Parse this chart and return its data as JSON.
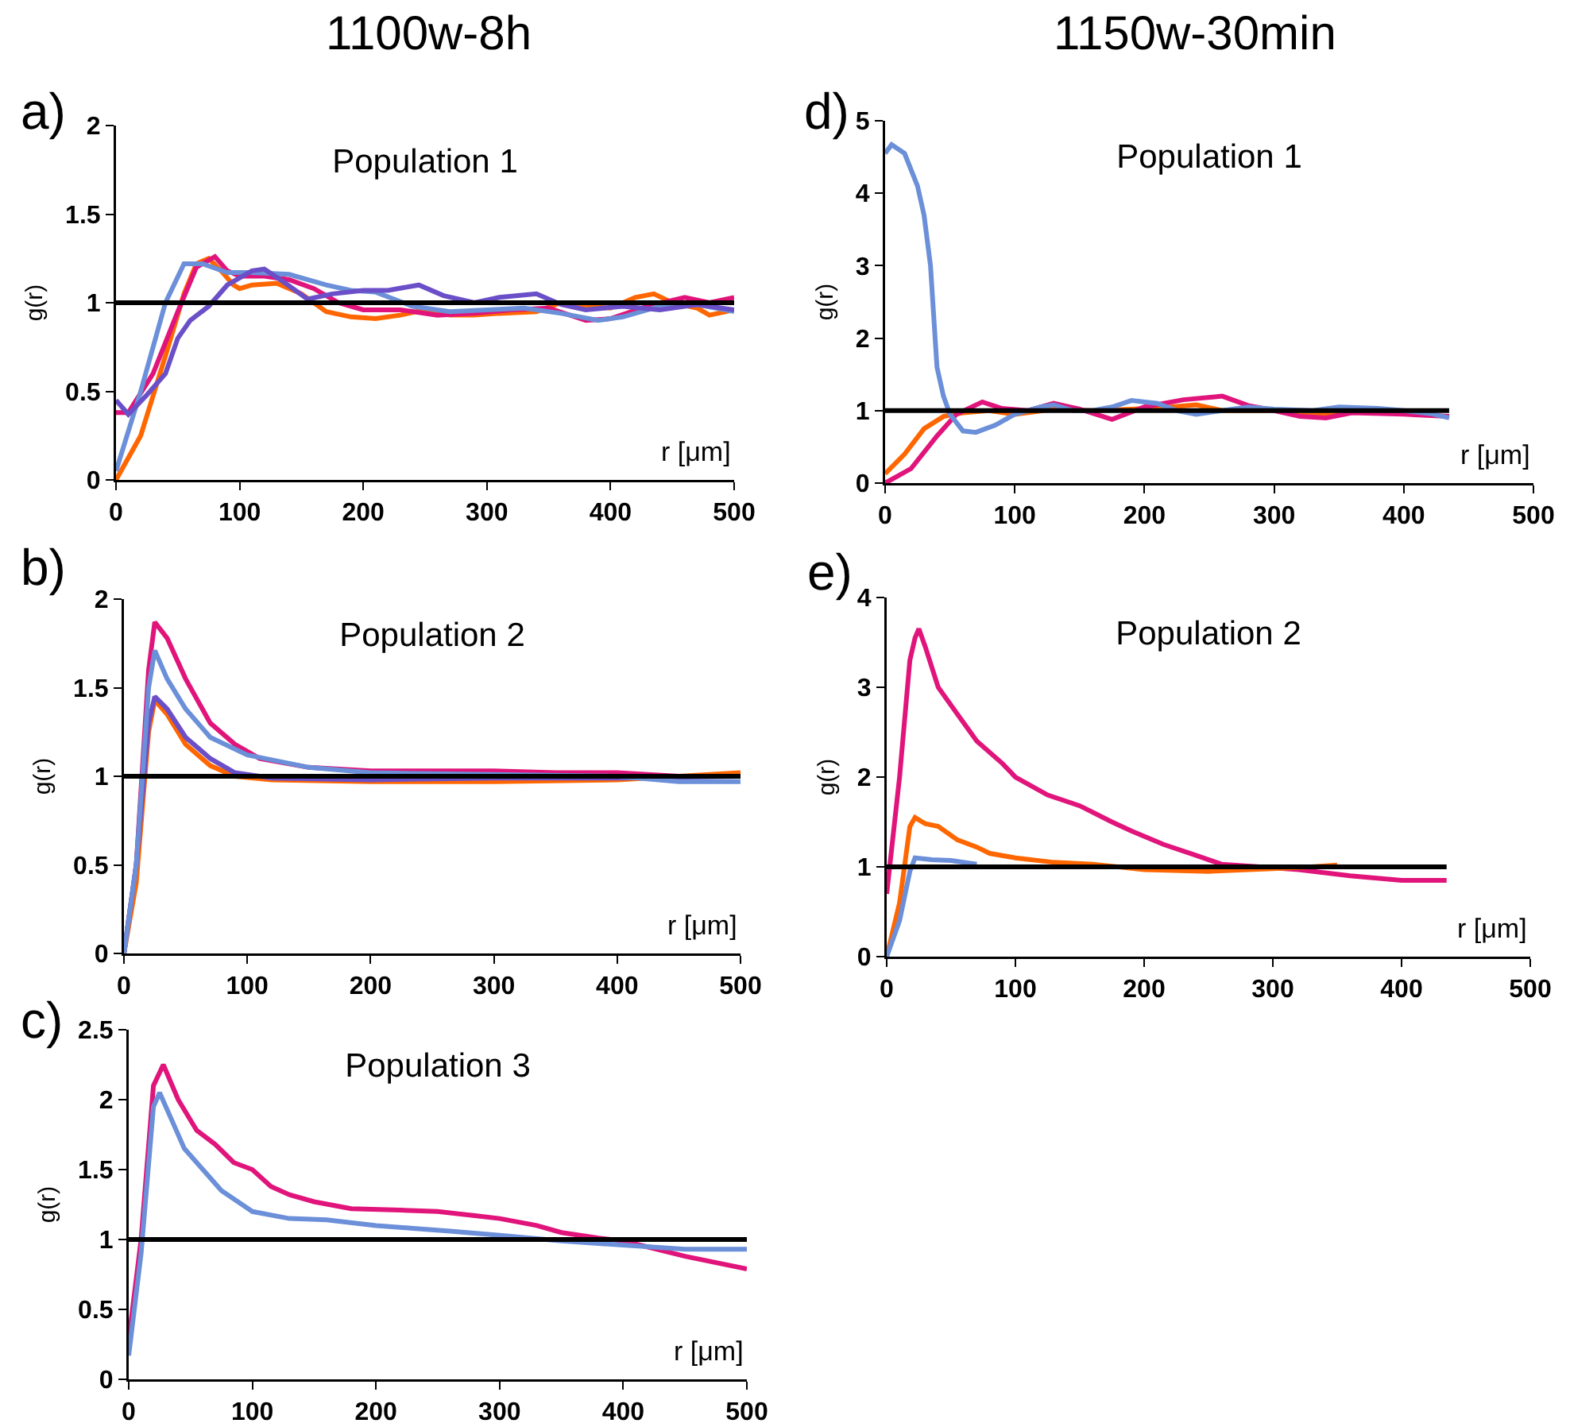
{
  "chart_data": [
    {
      "type": "line",
      "title": "Population 1",
      "xlabel": "r [μm]",
      "ylabel": "g(r)",
      "annotations": [
        "1100w-8h",
        "a)"
      ],
      "xlim": [
        0,
        500
      ],
      "xticks": [
        0,
        100,
        200,
        300,
        400,
        500
      ],
      "ylim": [
        0,
        2
      ],
      "yticks": [
        0,
        0.5,
        1,
        1.5,
        2
      ],
      "series": [
        {
          "color": "#ff6600",
          "x": [
            0,
            20,
            40,
            55,
            65,
            75,
            85,
            95,
            100,
            110,
            130,
            150,
            170,
            190,
            210,
            230,
            250,
            270,
            290,
            310,
            340,
            360,
            380,
            400,
            420,
            435,
            450,
            470,
            480,
            500
          ],
          "values": [
            0,
            0.25,
            0.7,
            1.05,
            1.22,
            1.25,
            1.18,
            1.1,
            1.08,
            1.1,
            1.11,
            1.05,
            0.95,
            0.92,
            0.91,
            0.93,
            0.96,
            0.93,
            0.93,
            0.94,
            0.95,
            1.0,
            0.98,
            0.97,
            1.03,
            1.05,
            1.0,
            0.97,
            0.93,
            0.96
          ]
        },
        {
          "color": "#e0147a",
          "x": [
            0,
            10,
            30,
            50,
            65,
            80,
            90,
            100,
            120,
            140,
            160,
            180,
            200,
            230,
            260,
            290,
            320,
            350,
            380,
            400,
            430,
            460,
            480,
            500
          ],
          "values": [
            0.38,
            0.38,
            0.6,
            0.95,
            1.2,
            1.26,
            1.18,
            1.15,
            1.15,
            1.13,
            1.08,
            1.0,
            0.96,
            0.96,
            0.93,
            0.94,
            0.96,
            0.97,
            0.9,
            0.91,
            0.98,
            1.03,
            1.0,
            1.03
          ]
        },
        {
          "color": "#6b8fd8",
          "x": [
            0,
            20,
            40,
            55,
            70,
            90,
            110,
            140,
            170,
            190,
            210,
            240,
            270,
            300,
            330,
            360,
            390,
            410,
            440,
            470,
            500
          ],
          "values": [
            0.05,
            0.5,
            1.0,
            1.22,
            1.22,
            1.17,
            1.17,
            1.16,
            1.1,
            1.07,
            1.06,
            0.98,
            0.95,
            0.96,
            0.97,
            0.94,
            0.9,
            0.92,
            0.98,
            0.99,
            0.95
          ]
        },
        {
          "color": "#6a4fc8",
          "x": [
            0,
            10,
            25,
            40,
            50,
            60,
            75,
            90,
            110,
            120,
            135,
            155,
            175,
            200,
            220,
            245,
            265,
            290,
            310,
            340,
            360,
            380,
            410,
            440,
            470,
            500
          ],
          "values": [
            0.45,
            0.37,
            0.48,
            0.6,
            0.8,
            0.9,
            0.98,
            1.1,
            1.18,
            1.19,
            1.12,
            1.02,
            1.05,
            1.07,
            1.07,
            1.1,
            1.04,
            1.0,
            1.03,
            1.05,
            0.99,
            0.96,
            0.98,
            0.96,
            0.99,
            0.96
          ]
        },
        {
          "color": "#000000",
          "x": [
            0,
            500
          ],
          "values": [
            1,
            1
          ]
        }
      ]
    },
    {
      "type": "line",
      "title": "Population 2",
      "xlabel": "r [μm]",
      "ylabel": "g(r)",
      "annotations": [
        "b)"
      ],
      "xlim": [
        0,
        500
      ],
      "xticks": [
        0,
        100,
        200,
        300,
        400,
        500
      ],
      "ylim": [
        0,
        2
      ],
      "yticks": [
        0,
        0.5,
        1,
        1.5,
        2
      ],
      "series": [
        {
          "color": "#e0147a",
          "x": [
            0,
            10,
            20,
            25,
            35,
            50,
            70,
            90,
            110,
            150,
            200,
            250,
            300,
            350,
            400,
            450,
            500
          ],
          "values": [
            0,
            0.5,
            1.6,
            1.87,
            1.78,
            1.55,
            1.3,
            1.18,
            1.1,
            1.05,
            1.03,
            1.03,
            1.03,
            1.02,
            1.02,
            1.0,
            1.0
          ]
        },
        {
          "color": "#ff6600",
          "x": [
            0,
            10,
            20,
            25,
            35,
            50,
            70,
            90,
            120,
            200,
            300,
            400,
            500
          ],
          "values": [
            0,
            0.4,
            1.25,
            1.43,
            1.35,
            1.18,
            1.06,
            1.0,
            0.98,
            0.97,
            0.97,
            0.98,
            1.02
          ]
        },
        {
          "color": "#6a4fc8",
          "x": [
            0,
            10,
            20,
            25,
            35,
            50,
            70,
            90,
            120,
            200,
            300,
            400,
            500
          ],
          "values": [
            0,
            0.5,
            1.3,
            1.45,
            1.38,
            1.22,
            1.1,
            1.02,
            0.99,
            0.98,
            0.99,
            0.99,
            1.0
          ]
        },
        {
          "color": "#6b8fd8",
          "x": [
            0,
            10,
            20,
            25,
            35,
            50,
            70,
            100,
            150,
            200,
            300,
            400,
            450,
            500
          ],
          "values": [
            0,
            0.5,
            1.5,
            1.71,
            1.55,
            1.38,
            1.22,
            1.12,
            1.05,
            1.02,
            1.01,
            1.0,
            0.97,
            0.97
          ]
        },
        {
          "color": "#000000",
          "x": [
            0,
            500
          ],
          "values": [
            1,
            1
          ]
        }
      ]
    },
    {
      "type": "line",
      "title": "Population 3",
      "xlabel": "r [μm]",
      "ylabel": "g(r)",
      "annotations": [
        "c)"
      ],
      "xlim": [
        0,
        500
      ],
      "xticks": [
        0,
        100,
        200,
        300,
        400,
        500
      ],
      "ylim": [
        0,
        2.5
      ],
      "yticks": [
        0,
        0.5,
        1,
        1.5,
        2,
        2.5
      ],
      "series": [
        {
          "color": "#e0147a",
          "x": [
            0,
            10,
            20,
            28,
            40,
            55,
            70,
            85,
            100,
            115,
            130,
            150,
            180,
            220,
            250,
            280,
            300,
            330,
            350,
            380,
            400,
            450,
            500
          ],
          "values": [
            0.28,
            1.0,
            2.1,
            2.25,
            2.0,
            1.78,
            1.68,
            1.55,
            1.5,
            1.38,
            1.32,
            1.27,
            1.22,
            1.21,
            1.2,
            1.17,
            1.15,
            1.1,
            1.05,
            1.01,
            0.99,
            0.88,
            0.79
          ]
        },
        {
          "color": "#6b8fd8",
          "x": [
            0,
            10,
            20,
            25,
            35,
            45,
            60,
            75,
            100,
            130,
            160,
            200,
            230,
            260,
            300,
            350,
            400,
            450,
            500
          ],
          "values": [
            0.17,
            0.9,
            1.95,
            2.05,
            1.85,
            1.65,
            1.5,
            1.35,
            1.2,
            1.15,
            1.14,
            1.1,
            1.08,
            1.06,
            1.03,
            0.99,
            0.96,
            0.93,
            0.93
          ]
        },
        {
          "color": "#000000",
          "x": [
            0,
            500
          ],
          "values": [
            1,
            1
          ]
        }
      ]
    },
    {
      "type": "line",
      "title": "Population 1",
      "xlabel": "r [μm]",
      "ylabel": "g(r)",
      "annotations": [
        "1150w-30min",
        "d)"
      ],
      "xlim": [
        0,
        500
      ],
      "xticks": [
        0,
        100,
        200,
        300,
        400,
        500
      ],
      "ylim": [
        0,
        5
      ],
      "yticks": [
        0,
        1,
        2,
        3,
        4,
        5
      ],
      "series": [
        {
          "color": "#ff6600",
          "x": [
            0,
            15,
            30,
            45,
            60,
            80,
            100,
            130,
            160,
            190,
            220,
            240,
            260,
            300,
            330,
            350
          ],
          "values": [
            0.13,
            0.4,
            0.75,
            0.92,
            0.97,
            1.0,
            0.95,
            1.02,
            1.0,
            1.02,
            1.05,
            1.08,
            1.0,
            1.0,
            0.95,
            0.96
          ]
        },
        {
          "color": "#e0147a",
          "x": [
            0,
            20,
            40,
            55,
            75,
            90,
            110,
            130,
            150,
            175,
            200,
            230,
            260,
            280,
            300,
            320,
            340,
            360,
            400,
            435
          ],
          "values": [
            0,
            0.2,
            0.65,
            0.95,
            1.12,
            1.03,
            1.0,
            1.1,
            1.02,
            0.88,
            1.05,
            1.15,
            1.2,
            1.07,
            1.0,
            0.92,
            0.9,
            0.97,
            0.95,
            0.92
          ]
        },
        {
          "color": "#6b8fd8",
          "x": [
            0,
            5,
            15,
            25,
            30,
            35,
            40,
            45,
            50,
            60,
            70,
            85,
            100,
            120,
            130,
            145,
            160,
            175,
            190,
            210,
            225,
            240,
            260,
            280,
            300,
            330,
            350,
            380,
            400,
            420,
            435
          ],
          "values": [
            4.55,
            4.67,
            4.55,
            4.1,
            3.7,
            3.0,
            1.6,
            1.2,
            0.95,
            0.72,
            0.7,
            0.8,
            0.95,
            1.05,
            1.08,
            1.0,
            1.0,
            1.05,
            1.14,
            1.1,
            1.0,
            0.95,
            1.0,
            1.05,
            1.02,
            1.0,
            1.05,
            1.03,
            1.0,
            0.96,
            0.9
          ]
        },
        {
          "color": "#000000",
          "x": [
            0,
            435
          ],
          "values": [
            1,
            1
          ]
        }
      ]
    },
    {
      "type": "line",
      "title": "Population 2",
      "xlabel": "r [μm]",
      "ylabel": "g(r)",
      "annotations": [
        "e)"
      ],
      "xlim": [
        0,
        500
      ],
      "xticks": [
        0,
        100,
        200,
        300,
        400,
        500
      ],
      "ylim": [
        0,
        4
      ],
      "yticks": [
        0,
        1,
        2,
        3,
        4
      ],
      "series": [
        {
          "color": "#e0147a",
          "x": [
            0,
            10,
            18,
            22,
            25,
            30,
            40,
            55,
            70,
            90,
            100,
            125,
            150,
            175,
            190,
            215,
            240,
            260,
            290,
            320,
            360,
            400,
            435
          ],
          "values": [
            0.7,
            2.0,
            3.3,
            3.55,
            3.65,
            3.45,
            3.0,
            2.7,
            2.4,
            2.15,
            2.0,
            1.8,
            1.68,
            1.5,
            1.4,
            1.25,
            1.13,
            1.03,
            1.0,
            0.97,
            0.9,
            0.85,
            0.85
          ]
        },
        {
          "color": "#ff6600",
          "x": [
            0,
            10,
            18,
            22,
            30,
            40,
            55,
            70,
            80,
            100,
            130,
            160,
            200,
            250,
            300,
            330,
            350
          ],
          "values": [
            0,
            0.6,
            1.45,
            1.55,
            1.48,
            1.45,
            1.3,
            1.22,
            1.15,
            1.1,
            1.05,
            1.03,
            0.97,
            0.95,
            0.98,
            1.0,
            1.02
          ]
        },
        {
          "color": "#6b8fd8",
          "x": [
            0,
            10,
            18,
            22,
            35,
            50,
            70
          ],
          "values": [
            0,
            0.4,
            0.95,
            1.1,
            1.08,
            1.07,
            1.03
          ]
        },
        {
          "color": "#000000",
          "x": [
            0,
            435
          ],
          "values": [
            1,
            1
          ]
        }
      ]
    }
  ]
}
